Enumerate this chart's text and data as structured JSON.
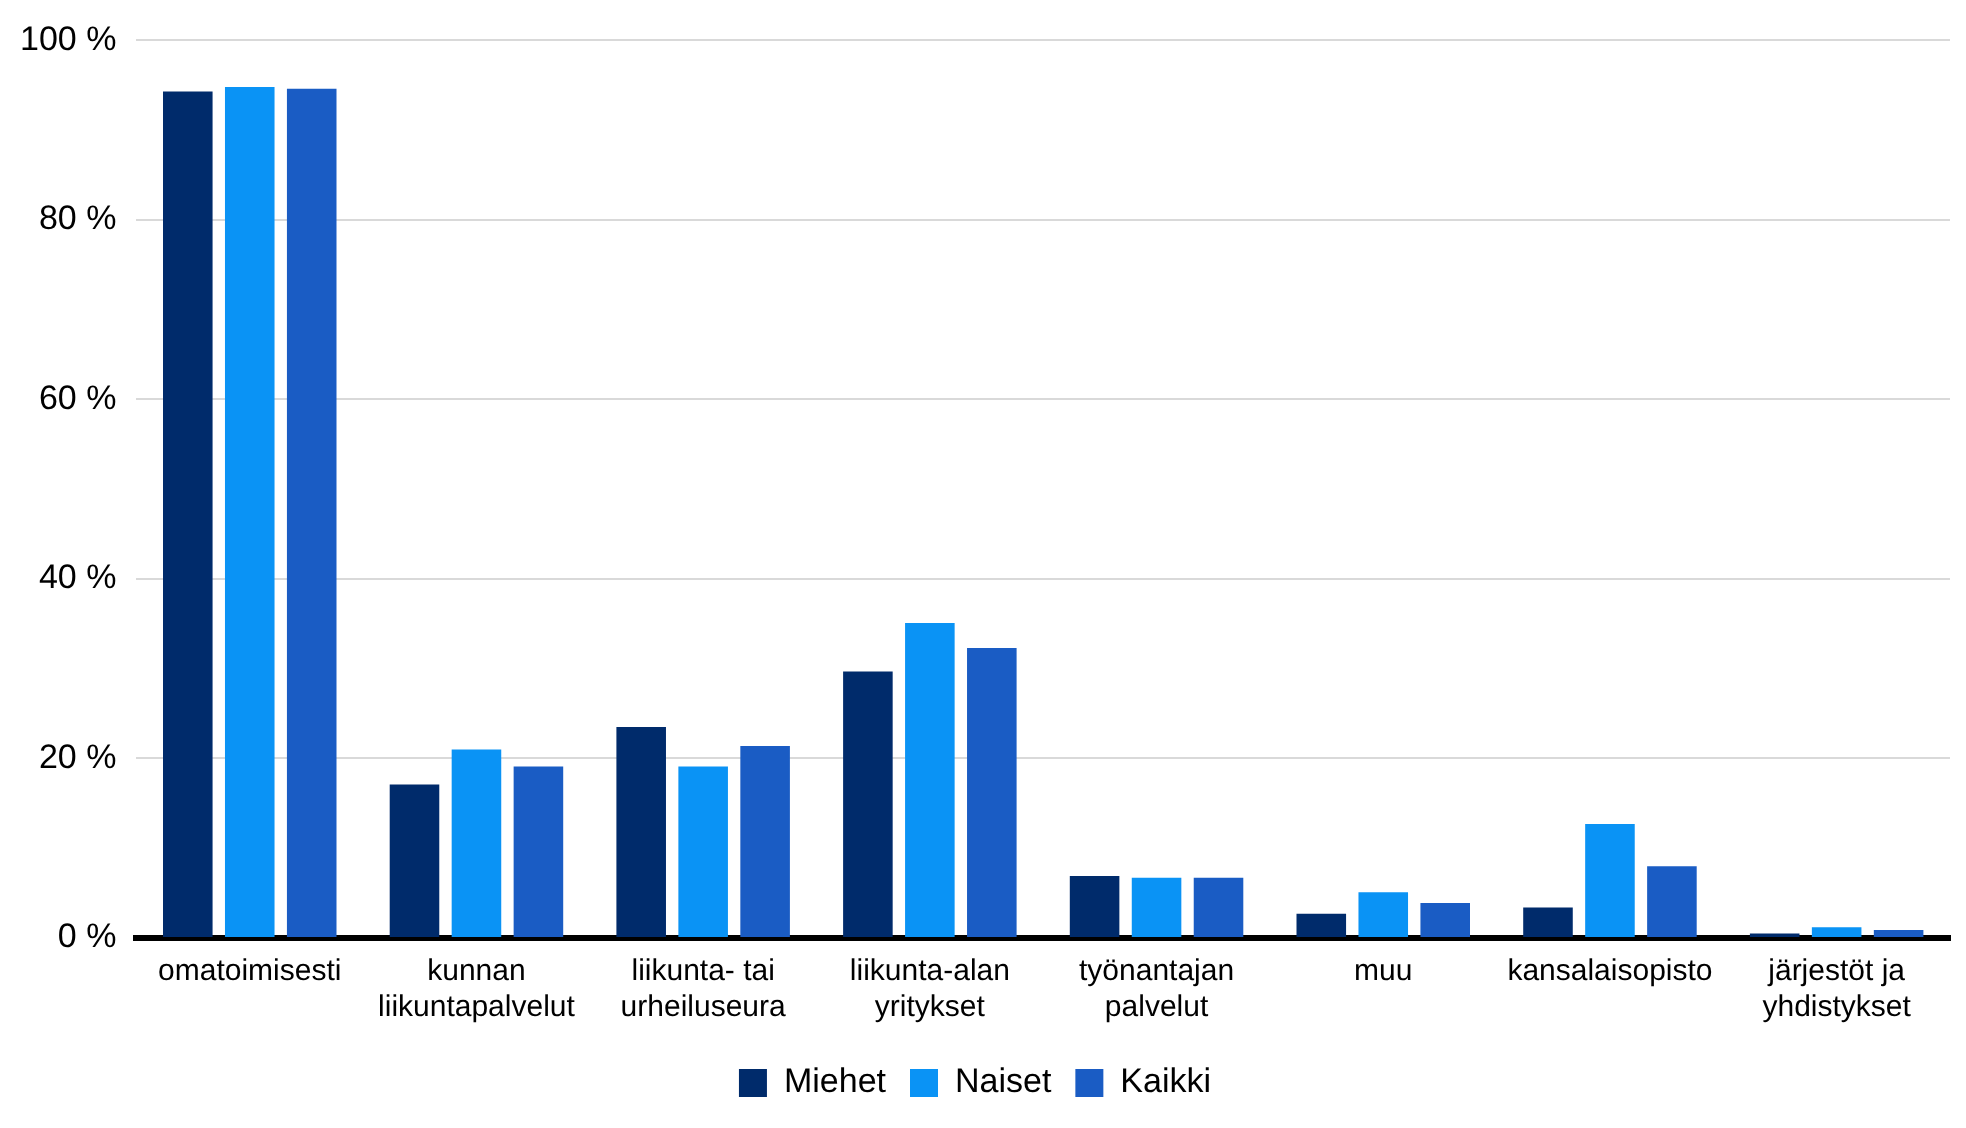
{
  "chart_data": {
    "type": "bar",
    "categories": [
      "omatoimisesti",
      "kunnan\nliikuntapalvelut",
      "liikunta- tai\nurheiluseura",
      "liikunta-alan\nyritykset",
      "työnantajan\npalvelut",
      "muu",
      "kansalaisopisto",
      "järjestöt ja\nyhdistykset"
    ],
    "series": [
      {
        "name": "Miehet",
        "color": "#002b6b",
        "values": [
          94.3,
          17.1,
          23.5,
          29.7,
          6.9,
          2.7,
          3.4,
          0.5
        ]
      },
      {
        "name": "Naiset",
        "color": "#0a93f5",
        "values": [
          94.8,
          21.0,
          19.1,
          35.1,
          6.7,
          5.1,
          12.7,
          1.2
        ]
      },
      {
        "name": "Kaikki",
        "color": "#1a5cc4",
        "values": [
          94.6,
          19.1,
          21.4,
          32.3,
          6.7,
          3.9,
          8.0,
          0.9
        ]
      }
    ],
    "ylim": [
      0,
      100
    ],
    "yticks": [
      {
        "value": 0,
        "label": "0 %"
      },
      {
        "value": 20,
        "label": "20 %"
      },
      {
        "value": 40,
        "label": "40 %"
      },
      {
        "value": 60,
        "label": "60 %"
      },
      {
        "value": 80,
        "label": "80 %"
      },
      {
        "value": 100,
        "label": "100 %"
      }
    ],
    "grid": "y",
    "legend": "bottom"
  }
}
